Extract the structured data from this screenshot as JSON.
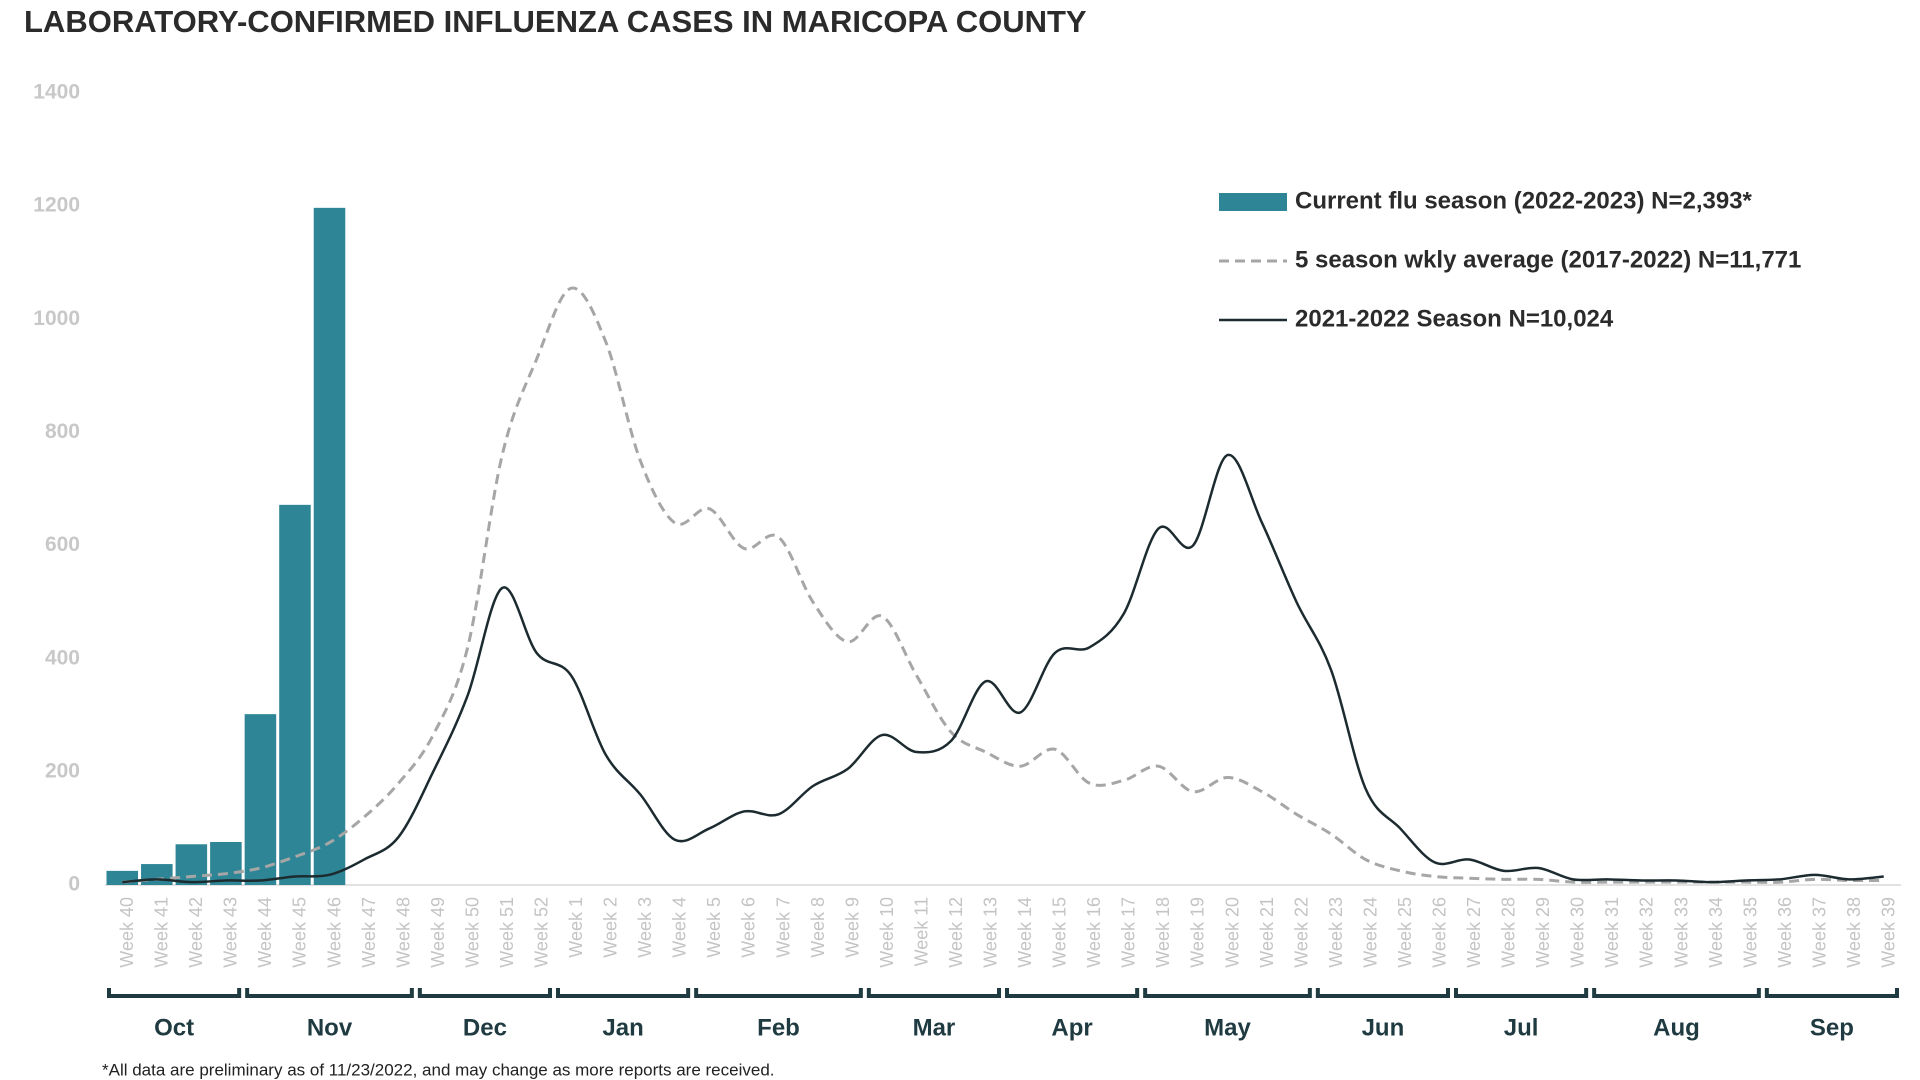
{
  "chart_data": {
    "type": "bar_line",
    "title": "LABORATORY-CONFIRMED INFLUENZA CASES IN MARICOPA COUNTY",
    "footnote": "*All data are preliminary as of 11/23/2022, and may change as more reports are received.",
    "categories": [
      "Week 40",
      "Week 41",
      "Week 42",
      "Week 43",
      "Week 44",
      "Week 45",
      "Week 46",
      "Week 47",
      "Week 48",
      "Week 49",
      "Week 50",
      "Week 51",
      "Week 52",
      "Week 1",
      "Week 2",
      "Week 3",
      "Week 4",
      "Week 5",
      "Week 6",
      "Week 7",
      "Week 8",
      "Week 9",
      "Week 10",
      "Week 11",
      "Week 12",
      "Week 13",
      "Week 14",
      "Week 15",
      "Week 16",
      "Week 17",
      "Week 18",
      "Week 19",
      "Week 20",
      "Week 21",
      "Week 22",
      "Week 23",
      "Week 24",
      "Week 25",
      "Week 26",
      "Week 27",
      "Week 28",
      "Week 29",
      "Week 30",
      "Week 31",
      "Week 32",
      "Week 33",
      "Week 34",
      "Week 35",
      "Week 36",
      "Week 37",
      "Week 38",
      "Week 39"
    ],
    "months": [
      {
        "label": "Oct",
        "weeks": 4
      },
      {
        "label": "Nov",
        "weeks": 5
      },
      {
        "label": "Dec",
        "weeks": 4
      },
      {
        "label": "Jan",
        "weeks": 4
      },
      {
        "label": "Feb",
        "weeks": 5
      },
      {
        "label": "Mar",
        "weeks": 4
      },
      {
        "label": "Apr",
        "weeks": 4
      },
      {
        "label": "May",
        "weeks": 5
      },
      {
        "label": "Jun",
        "weeks": 4
      },
      {
        "label": "Jul",
        "weeks": 4
      },
      {
        "label": "Aug",
        "weeks": 5
      },
      {
        "label": "Sep",
        "weeks": 4
      }
    ],
    "series": [
      {
        "name": "Current flu season (2022-2023) N=2,393*",
        "type": "bar",
        "color": "#2e8596",
        "values": [
          25,
          37,
          72,
          76,
          302,
          672,
          1197,
          null,
          null,
          null,
          null,
          null,
          null,
          null,
          null,
          null,
          null,
          null,
          null,
          null,
          null,
          null,
          null,
          null,
          null,
          null,
          null,
          null,
          null,
          null,
          null,
          null,
          null,
          null,
          null,
          null,
          null,
          null,
          null,
          null,
          null,
          null,
          null,
          null,
          null,
          null,
          null,
          null,
          null,
          null,
          null,
          null
        ]
      },
      {
        "name": "5 season wkly average (2017-2022) N=11,771",
        "type": "line",
        "dashed": true,
        "color": "#a6a6a6",
        "values": [
          5,
          10,
          15,
          20,
          30,
          50,
          75,
          120,
          180,
          265,
          420,
          760,
          930,
          1055,
          960,
          750,
          640,
          665,
          595,
          615,
          500,
          430,
          475,
          370,
          270,
          235,
          210,
          240,
          180,
          185,
          210,
          165,
          190,
          165,
          125,
          90,
          45,
          25,
          15,
          12,
          10,
          10,
          5,
          5,
          5,
          5,
          5,
          5,
          5,
          10,
          8,
          8
        ]
      },
      {
        "name": "2021-2022 Season N=10,024",
        "type": "line",
        "dashed": false,
        "color": "#1c2b2f",
        "values": [
          5,
          10,
          5,
          8,
          8,
          15,
          18,
          45,
          85,
          200,
          335,
          525,
          410,
          370,
          230,
          160,
          80,
          100,
          130,
          125,
          175,
          205,
          265,
          235,
          255,
          360,
          305,
          410,
          420,
          480,
          630,
          600,
          760,
          640,
          500,
          380,
          170,
          100,
          40,
          45,
          25,
          30,
          10,
          10,
          8,
          8,
          5,
          8,
          10,
          18,
          10,
          15
        ]
      }
    ],
    "ylim": [
      0,
      1400
    ],
    "yticks": [
      0,
      200,
      400,
      600,
      800,
      1000,
      1200,
      1400
    ],
    "grid": false
  }
}
